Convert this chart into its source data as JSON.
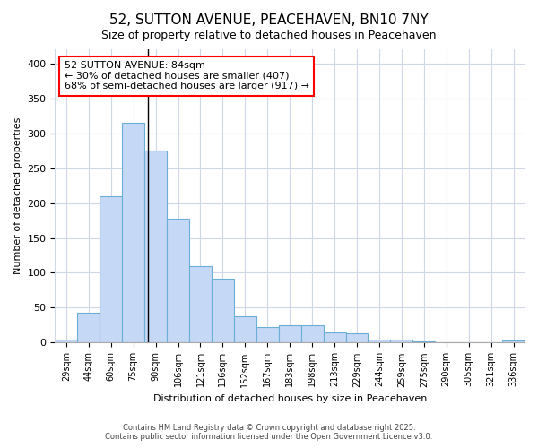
{
  "title1": "52, SUTTON AVENUE, PEACEHAVEN, BN10 7NY",
  "title2": "Size of property relative to detached houses in Peacehaven",
  "xlabel": "Distribution of detached houses by size in Peacehaven",
  "ylabel": "Number of detached properties",
  "categories": [
    "29sqm",
    "44sqm",
    "60sqm",
    "75sqm",
    "90sqm",
    "106sqm",
    "121sqm",
    "136sqm",
    "152sqm",
    "167sqm",
    "183sqm",
    "198sqm",
    "213sqm",
    "229sqm",
    "244sqm",
    "259sqm",
    "275sqm",
    "290sqm",
    "305sqm",
    "321sqm",
    "336sqm"
  ],
  "values": [
    4,
    43,
    210,
    315,
    275,
    178,
    110,
    92,
    38,
    22,
    25,
    25,
    15,
    13,
    5,
    5,
    2,
    1,
    1,
    0,
    3
  ],
  "bar_color": "#c5d8f5",
  "bar_edge_color": "#6baed6",
  "vline_position": 3.67,
  "annotation_line1": "52 SUTTON AVENUE: 84sqm",
  "annotation_line2": "← 30% of detached houses are smaller (407)",
  "annotation_line3": "68% of semi-detached houses are larger (917) →",
  "annotation_box_color": "white",
  "annotation_box_edge": "red",
  "ylim": [
    0,
    420
  ],
  "yticks": [
    0,
    50,
    100,
    150,
    200,
    250,
    300,
    350,
    400
  ],
  "footer1": "Contains HM Land Registry data © Crown copyright and database right 2025.",
  "footer2": "Contains public sector information licensed under the Open Government Licence v3.0.",
  "bg_color": "#ffffff",
  "plot_bg_color": "#ffffff",
  "grid_color": "#d0d8e8"
}
